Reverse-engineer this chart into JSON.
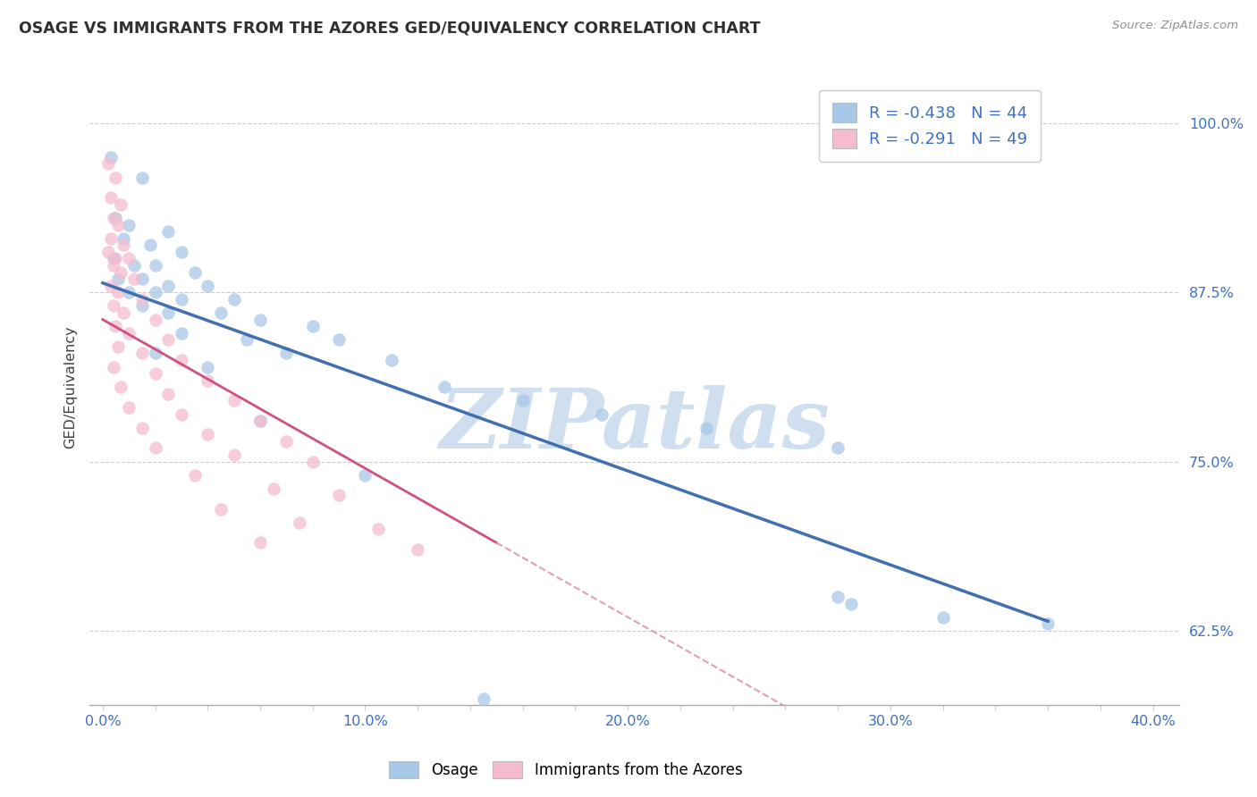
{
  "title": "OSAGE VS IMMIGRANTS FROM THE AZORES GED/EQUIVALENCY CORRELATION CHART",
  "source": "Source: ZipAtlas.com",
  "ylabel": "GED/Equivalency",
  "xlabel_ticks": [
    "0.0%",
    "",
    "",
    "",
    "",
    "10.0%",
    "",
    "",
    "",
    "",
    "20.0%",
    "",
    "",
    "",
    "",
    "30.0%",
    "",
    "",
    "",
    "",
    "40.0%"
  ],
  "xlabel_values": [
    0,
    2,
    4,
    6,
    8,
    10,
    12,
    14,
    16,
    18,
    20,
    22,
    24,
    26,
    28,
    30,
    32,
    34,
    36,
    38,
    40
  ],
  "ylim": [
    57,
    104
  ],
  "xlim": [
    -0.5,
    41
  ],
  "yticks": [
    62.5,
    75.0,
    87.5,
    100.0
  ],
  "ytick_labels": [
    "62.5%",
    "75.0%",
    "87.5%",
    "100.0%"
  ],
  "legend_label1": "Osage",
  "legend_label2": "Immigrants from the Azores",
  "r1": "-0.438",
  "n1": "44",
  "r2": "-0.291",
  "n2": "49",
  "blue_color": "#A8C8E8",
  "pink_color": "#F5BCCF",
  "blue_line_color": "#4070B0",
  "pink_line_color": "#D05080",
  "dashed_line_color": "#E0A0B0",
  "title_color": "#303030",
  "source_color": "#909090",
  "watermark_color": "#D0DFF0",
  "legend_text_color": "#4070C0",
  "blue_scatter": [
    [
      0.3,
      97.5
    ],
    [
      1.5,
      96.0
    ],
    [
      0.5,
      93.0
    ],
    [
      1.0,
      92.5
    ],
    [
      2.5,
      92.0
    ],
    [
      0.8,
      91.5
    ],
    [
      1.8,
      91.0
    ],
    [
      3.0,
      90.5
    ],
    [
      0.4,
      90.0
    ],
    [
      1.2,
      89.5
    ],
    [
      2.0,
      89.5
    ],
    [
      3.5,
      89.0
    ],
    [
      0.6,
      88.5
    ],
    [
      1.5,
      88.5
    ],
    [
      2.5,
      88.0
    ],
    [
      4.0,
      88.0
    ],
    [
      1.0,
      87.5
    ],
    [
      2.0,
      87.5
    ],
    [
      3.0,
      87.0
    ],
    [
      5.0,
      87.0
    ],
    [
      1.5,
      86.5
    ],
    [
      2.5,
      86.0
    ],
    [
      4.5,
      86.0
    ],
    [
      6.0,
      85.5
    ],
    [
      8.0,
      85.0
    ],
    [
      3.0,
      84.5
    ],
    [
      5.5,
      84.0
    ],
    [
      9.0,
      84.0
    ],
    [
      2.0,
      83.0
    ],
    [
      7.0,
      83.0
    ],
    [
      11.0,
      82.5
    ],
    [
      4.0,
      82.0
    ],
    [
      13.0,
      80.5
    ],
    [
      16.0,
      79.5
    ],
    [
      19.0,
      78.5
    ],
    [
      23.0,
      77.5
    ],
    [
      28.0,
      76.0
    ],
    [
      32.0,
      63.5
    ],
    [
      36.0,
      63.0
    ],
    [
      28.0,
      65.0
    ],
    [
      10.0,
      74.0
    ],
    [
      6.0,
      78.0
    ],
    [
      14.5,
      57.5
    ],
    [
      28.5,
      64.5
    ]
  ],
  "pink_scatter": [
    [
      0.2,
      97.0
    ],
    [
      0.5,
      96.0
    ],
    [
      0.3,
      94.5
    ],
    [
      0.7,
      94.0
    ],
    [
      0.4,
      93.0
    ],
    [
      0.6,
      92.5
    ],
    [
      0.3,
      91.5
    ],
    [
      0.8,
      91.0
    ],
    [
      0.2,
      90.5
    ],
    [
      0.5,
      90.0
    ],
    [
      1.0,
      90.0
    ],
    [
      0.4,
      89.5
    ],
    [
      0.7,
      89.0
    ],
    [
      1.2,
      88.5
    ],
    [
      0.3,
      88.0
    ],
    [
      0.6,
      87.5
    ],
    [
      1.5,
      87.0
    ],
    [
      0.4,
      86.5
    ],
    [
      0.8,
      86.0
    ],
    [
      2.0,
      85.5
    ],
    [
      0.5,
      85.0
    ],
    [
      1.0,
      84.5
    ],
    [
      2.5,
      84.0
    ],
    [
      0.6,
      83.5
    ],
    [
      1.5,
      83.0
    ],
    [
      3.0,
      82.5
    ],
    [
      0.4,
      82.0
    ],
    [
      2.0,
      81.5
    ],
    [
      4.0,
      81.0
    ],
    [
      0.7,
      80.5
    ],
    [
      2.5,
      80.0
    ],
    [
      5.0,
      79.5
    ],
    [
      1.0,
      79.0
    ],
    [
      3.0,
      78.5
    ],
    [
      6.0,
      78.0
    ],
    [
      1.5,
      77.5
    ],
    [
      4.0,
      77.0
    ],
    [
      7.0,
      76.5
    ],
    [
      2.0,
      76.0
    ],
    [
      5.0,
      75.5
    ],
    [
      8.0,
      75.0
    ],
    [
      3.5,
      74.0
    ],
    [
      6.5,
      73.0
    ],
    [
      9.0,
      72.5
    ],
    [
      4.5,
      71.5
    ],
    [
      7.5,
      70.5
    ],
    [
      10.5,
      70.0
    ],
    [
      6.0,
      69.0
    ],
    [
      12.0,
      68.5
    ]
  ],
  "background_color": "#FFFFFF",
  "plot_bg_color": "#FFFFFF",
  "grid_color": "#CCCCCC"
}
